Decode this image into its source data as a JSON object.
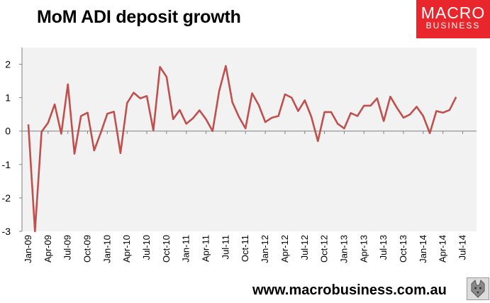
{
  "header": {
    "title": "MoM ADI deposit growth"
  },
  "logo": {
    "line1": "MACRO",
    "line2": "BUSINESS"
  },
  "footer": {
    "url": "www.macrobusiness.com.au",
    "badge_icon": "wolf-emblem-icon"
  },
  "colors": {
    "line": "#c0504d",
    "plot_bg": "#f2f2f2",
    "logo_bg": "#e8262b",
    "axis": "#808080"
  },
  "chart_data": {
    "type": "line",
    "title": "MoM ADI deposit growth",
    "xlabel": "",
    "ylabel": "",
    "ylim": [
      -3,
      2.5
    ],
    "yticks": [
      2,
      1,
      0,
      -1,
      -2,
      -3
    ],
    "grid": false,
    "legend": "none",
    "x_tick_labels": [
      "Jan-09",
      "Apr-09",
      "Jul-09",
      "Oct-09",
      "Jan-10",
      "Apr-10",
      "Jul-10",
      "Oct-10",
      "Jan-11",
      "Apr-11",
      "Jul-11",
      "Oct-11",
      "Jan-12",
      "Apr-12",
      "Jul-12",
      "Oct-12",
      "Jan-13",
      "Apr-13",
      "Jul-13",
      "Oct-13",
      "Jan-14",
      "Apr-14",
      "Jul-14"
    ],
    "series": [
      {
        "values": [
          0.2,
          -3.0,
          -0.02,
          0.25,
          0.8,
          -0.08,
          1.4,
          -0.68,
          0.45,
          0.55,
          -0.58,
          -0.05,
          0.52,
          0.58,
          -0.66,
          0.84,
          1.15,
          0.98,
          1.05,
          0.02,
          1.92,
          1.62,
          0.36,
          0.63,
          0.22,
          0.38,
          0.62,
          0.35,
          0.0,
          1.2,
          1.95,
          0.86,
          0.42,
          0.08,
          1.13,
          0.78,
          0.27,
          0.4,
          0.45,
          1.1,
          1.0,
          0.6,
          0.92,
          0.43,
          -0.3,
          0.57,
          0.57,
          0.22,
          0.08,
          0.54,
          0.45,
          0.76,
          0.76,
          0.98,
          0.3,
          1.03,
          0.7,
          0.4,
          0.5,
          0.73,
          0.45,
          -0.06,
          0.6,
          0.55,
          0.63,
          1.02
        ]
      }
    ]
  }
}
